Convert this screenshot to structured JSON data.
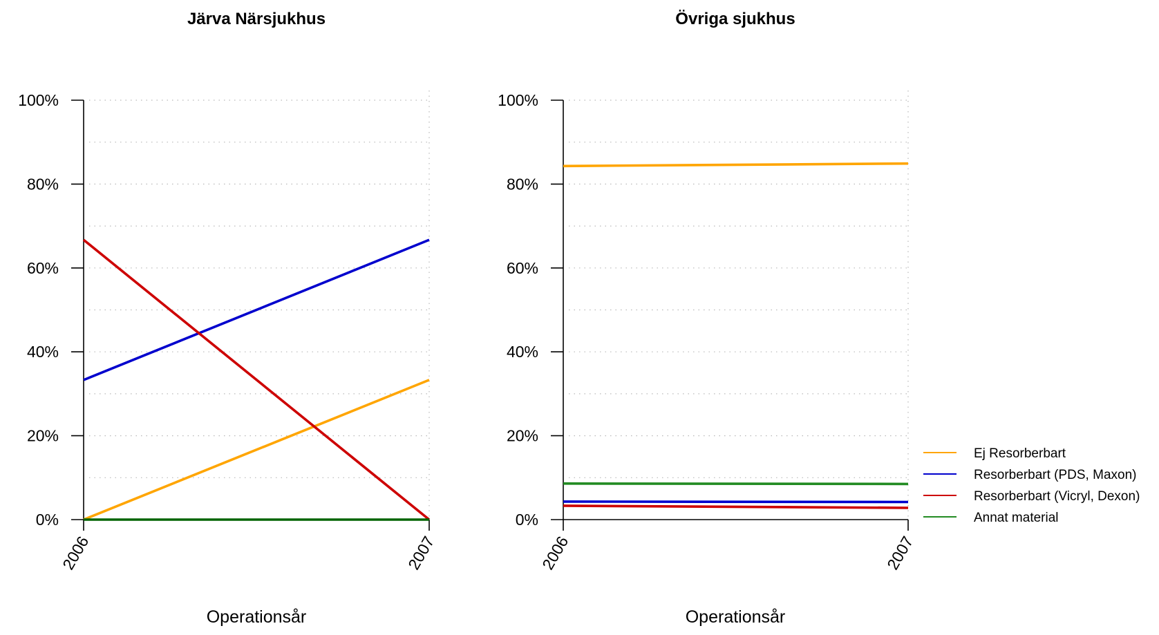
{
  "chart_data": [
    {
      "type": "line",
      "title": "Järva Närsjukhus",
      "xlabel": "Operationsår",
      "ylabel": "",
      "x": [
        "2006",
        "2007"
      ],
      "ylim": [
        0,
        100
      ],
      "yticks": [
        "0%",
        "20%",
        "40%",
        "60%",
        "80%",
        "100%"
      ],
      "grid": true,
      "series": [
        {
          "name": "Ej Resorberbart",
          "color": "#FFA500",
          "values": [
            0,
            33.3
          ]
        },
        {
          "name": "Resorberbart (PDS, Maxon)",
          "color": "#0000CD",
          "values": [
            33.3,
            66.7
          ]
        },
        {
          "name": "Resorberbart (Vicryl, Dexon)",
          "color": "#CD0000",
          "values": [
            66.7,
            0
          ]
        },
        {
          "name": "Annat material",
          "color": "#006400",
          "values": [
            0,
            0
          ]
        }
      ]
    },
    {
      "type": "line",
      "title": "Övriga sjukhus",
      "xlabel": "Operationsår",
      "ylabel": "",
      "x": [
        "2006",
        "2007"
      ],
      "ylim": [
        0,
        100
      ],
      "yticks": [
        "0%",
        "20%",
        "40%",
        "60%",
        "80%",
        "100%"
      ],
      "grid": true,
      "series": [
        {
          "name": "Ej Resorberbart",
          "color": "#FFA500",
          "values": [
            84.3,
            84.9
          ]
        },
        {
          "name": "Resorberbart (PDS, Maxon)",
          "color": "#0000CD",
          "values": [
            4.3,
            4.2
          ]
        },
        {
          "name": "Resorberbart (Vicryl, Dexon)",
          "color": "#CD0000",
          "values": [
            3.3,
            2.8
          ]
        },
        {
          "name": "Annat material",
          "color": "#228B22",
          "values": [
            8.6,
            8.5
          ]
        }
      ]
    }
  ],
  "legend": {
    "placement": "right",
    "items": [
      {
        "label": "Ej Resorberbart",
        "color": "#FFA500"
      },
      {
        "label": "Resorberbart (PDS, Maxon)",
        "color": "#0000CD"
      },
      {
        "label": "Resorberbart (Vicryl, Dexon)",
        "color": "#CD0000"
      },
      {
        "label": "Annat material",
        "color": "#228B22"
      }
    ]
  }
}
